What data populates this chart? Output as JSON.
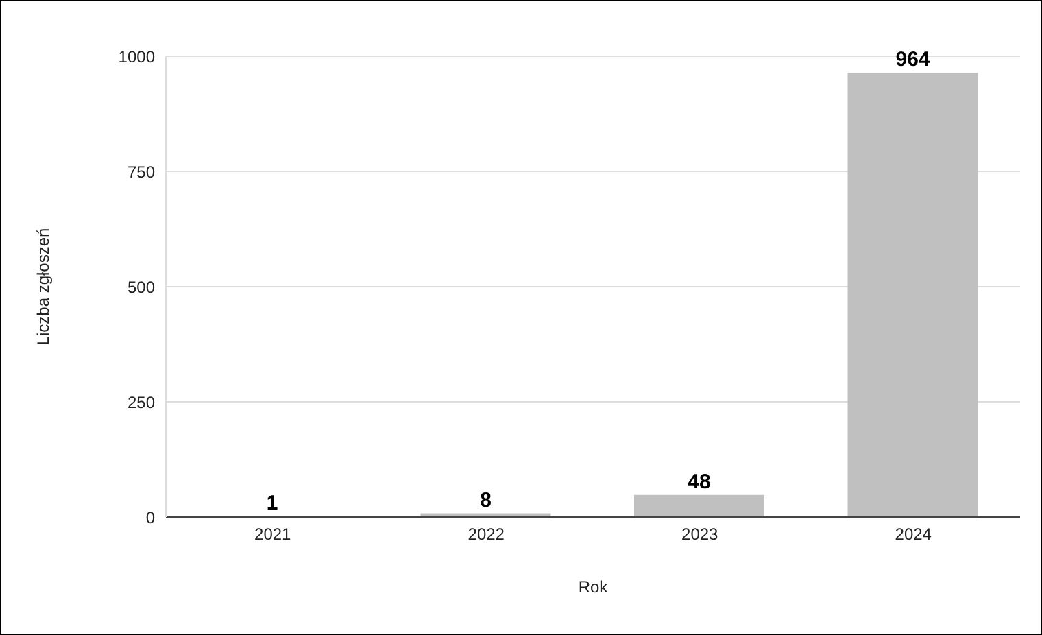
{
  "chart_data": {
    "type": "bar",
    "xlabel": "Rok",
    "ylabel": "Liczba zgłoszeń",
    "categories": [
      "2021",
      "2022",
      "2023",
      "2024"
    ],
    "values": [
      1,
      8,
      48,
      964
    ],
    "color": "#c0c0c0",
    "ylim": [
      0,
      1000
    ],
    "yticks": [
      0,
      250,
      500,
      750,
      1000
    ],
    "grid": "y",
    "data_labels": true
  }
}
